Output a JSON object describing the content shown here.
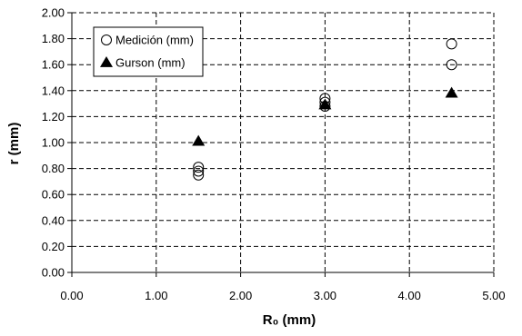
{
  "chart_data": {
    "type": "scatter",
    "xlabel": "R₀ (mm)",
    "ylabel": "r (mm)",
    "xlim": [
      0,
      5
    ],
    "ylim": [
      0,
      2
    ],
    "x_ticks": [
      "0.00",
      "1.00",
      "2.00",
      "3.00",
      "4.00",
      "5.00"
    ],
    "y_ticks": [
      "0.00",
      "0.20",
      "0.40",
      "0.60",
      "0.80",
      "1.00",
      "1.20",
      "1.40",
      "1.60",
      "1.80",
      "2.00"
    ],
    "grid": true,
    "legend_position": "top-left",
    "series": [
      {
        "name": "Medición (mm)",
        "marker": "open-circle",
        "color": "#000000",
        "points": [
          {
            "x": 1.5,
            "y": 0.81
          },
          {
            "x": 1.5,
            "y": 0.78
          },
          {
            "x": 1.5,
            "y": 0.75
          },
          {
            "x": 3.0,
            "y": 1.34
          },
          {
            "x": 3.0,
            "y": 1.31
          },
          {
            "x": 3.0,
            "y": 1.28
          },
          {
            "x": 4.5,
            "y": 1.76
          },
          {
            "x": 4.5,
            "y": 1.6
          }
        ]
      },
      {
        "name": "Gurson (mm)",
        "marker": "filled-triangle",
        "color": "#000000",
        "points": [
          {
            "x": 1.5,
            "y": 1.01
          },
          {
            "x": 3.0,
            "y": 1.29
          },
          {
            "x": 4.5,
            "y": 1.38
          }
        ]
      }
    ]
  }
}
